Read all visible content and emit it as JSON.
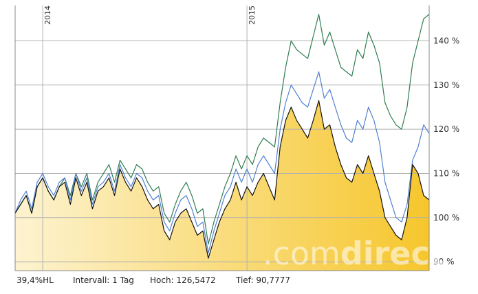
{
  "colors": {
    "area_top": "#f6c62c",
    "area_bottom": "#fdf3d0",
    "black_line": "#111111",
    "blue_line": "#4f7fd2",
    "green_line": "#2e7d4f",
    "grid": "#b0b0b0"
  },
  "watermark": {
    "prefix": ".com",
    "suffix": "direct"
  },
  "footer": {
    "range_label": "39,4%HL",
    "interval_label": "Intervall: 1 Tag",
    "high_label": "Hoch: 126,5472",
    "low_label": "Tief: 90,7777"
  },
  "chart_data": {
    "type": "line",
    "x_labels": [
      "2014",
      "2015"
    ],
    "yticks": [
      "90 %",
      "100 %",
      "110 %",
      "120 %",
      "130 %",
      "140 %"
    ],
    "ylim": [
      88,
      148
    ],
    "x_range": [
      0,
      150
    ],
    "year_starts": [
      10,
      84
    ],
    "series": [
      {
        "role": "main",
        "x": [
          0,
          2,
          4,
          6,
          8,
          10,
          12,
          14,
          16,
          18,
          20,
          22,
          24,
          26,
          28,
          30,
          32,
          34,
          36,
          38,
          40,
          42,
          44,
          46,
          48,
          50,
          52,
          54,
          56,
          58,
          60,
          62,
          64,
          66,
          68,
          70,
          72,
          74,
          76,
          78,
          80,
          82,
          84,
          86,
          88,
          90,
          92,
          94,
          96,
          98,
          100,
          102,
          104,
          106,
          108,
          110,
          112,
          114,
          116,
          118,
          120,
          122,
          124,
          126,
          128,
          130,
          132,
          134,
          136,
          138,
          140,
          142,
          144,
          146,
          148,
          150
        ],
        "y": [
          101,
          103,
          105,
          101,
          107,
          109,
          106,
          104,
          107,
          108,
          103,
          109,
          105,
          108,
          102,
          106,
          107,
          109,
          105,
          111,
          108,
          106,
          109,
          107,
          104,
          102,
          103,
          97,
          95,
          99,
          101,
          102,
          99,
          96,
          97,
          90.8,
          95,
          99,
          102,
          104,
          108,
          104,
          107,
          105,
          108,
          110,
          107,
          104,
          116,
          122,
          125,
          122,
          120,
          118,
          122,
          126.5,
          120,
          121,
          116,
          112,
          109,
          108,
          112,
          110,
          114,
          110,
          106,
          100,
          98,
          96,
          95,
          100,
          112,
          110,
          105,
          104
        ]
      },
      {
        "role": "blue",
        "x": [
          0,
          2,
          4,
          6,
          8,
          10,
          12,
          14,
          16,
          18,
          20,
          22,
          24,
          26,
          28,
          30,
          32,
          34,
          36,
          38,
          40,
          42,
          44,
          46,
          48,
          50,
          52,
          54,
          56,
          58,
          60,
          62,
          64,
          66,
          68,
          70,
          72,
          74,
          76,
          78,
          80,
          82,
          84,
          86,
          88,
          90,
          92,
          94,
          96,
          98,
          100,
          102,
          104,
          106,
          108,
          110,
          112,
          114,
          116,
          118,
          120,
          122,
          124,
          126,
          128,
          130,
          132,
          134,
          136,
          138,
          140,
          142,
          144,
          146,
          148,
          150
        ],
        "y": [
          101,
          104,
          106,
          102,
          108,
          110,
          107,
          105,
          108,
          109,
          104,
          110,
          106,
          109,
          103,
          107,
          108,
          110,
          106,
          112,
          109,
          107,
          110,
          109,
          106,
          104,
          105,
          99,
          97,
          101,
          104,
          105,
          102,
          98,
          99,
          92,
          97,
          101,
          105,
          107,
          111,
          108,
          111,
          108,
          112,
          114,
          112,
          110,
          120,
          126,
          130,
          128,
          126,
          125,
          129,
          133,
          127,
          129,
          125,
          121,
          118,
          117,
          122,
          120,
          125,
          122,
          117,
          108,
          104,
          100,
          99,
          103,
          113,
          116,
          121,
          119
        ]
      },
      {
        "role": "green",
        "x": [
          0,
          2,
          4,
          6,
          8,
          10,
          12,
          14,
          16,
          18,
          20,
          22,
          24,
          26,
          28,
          30,
          32,
          34,
          36,
          38,
          40,
          42,
          44,
          46,
          48,
          50,
          52,
          54,
          56,
          58,
          60,
          62,
          64,
          66,
          68,
          70,
          72,
          74,
          76,
          78,
          80,
          82,
          84,
          86,
          88,
          90,
          92,
          94,
          96,
          98,
          100,
          102,
          104,
          106,
          108,
          110,
          112,
          114,
          116,
          118,
          120,
          122,
          124,
          126,
          128,
          130,
          132,
          134,
          136,
          138,
          140,
          142,
          144,
          146,
          148,
          150
        ],
        "y": [
          101,
          103,
          105,
          101,
          107,
          109,
          106,
          104,
          107,
          109,
          105,
          110,
          107,
          110,
          104,
          108,
          110,
          112,
          108,
          113,
          111,
          109,
          112,
          111,
          108,
          106,
          107,
          101,
          99,
          103,
          106,
          108,
          105,
          101,
          102,
          94,
          99,
          103,
          107,
          110,
          114,
          111,
          114,
          112,
          116,
          118,
          117,
          116,
          126,
          134,
          140,
          138,
          137,
          136,
          141,
          146,
          139,
          142,
          138,
          134,
          133,
          132,
          138,
          136,
          142,
          139,
          135,
          126,
          123,
          121,
          120,
          125,
          135,
          140,
          145,
          146
        ]
      }
    ]
  }
}
